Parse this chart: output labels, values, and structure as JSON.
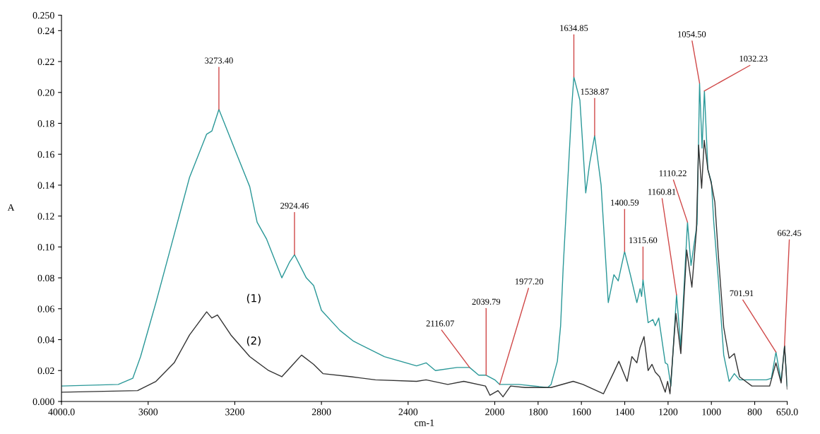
{
  "chart_data": {
    "type": "line",
    "xlabel": "cm-1",
    "ylabel": "A",
    "xlim": [
      4000,
      650
    ],
    "ylim": [
      0,
      0.25
    ],
    "xticks": [
      {
        "value": 4000,
        "label": "4000.0"
      },
      3600,
      3200,
      2800,
      2400,
      2000,
      1800,
      1600,
      1400,
      1200,
      1000,
      800,
      {
        "value": 650,
        "label": "650.0"
      }
    ],
    "yticks": [
      {
        "value": 0,
        "label": "0.000"
      },
      {
        "value": 0.02,
        "label": "0.02"
      },
      {
        "value": 0.04,
        "label": "0.04"
      },
      {
        "value": 0.06,
        "label": "0.06"
      },
      {
        "value": 0.08,
        "label": "0.08"
      },
      {
        "value": 0.1,
        "label": "0.10"
      },
      {
        "value": 0.12,
        "label": "0.12"
      },
      {
        "value": 0.14,
        "label": "0.14"
      },
      {
        "value": 0.16,
        "label": "0.16"
      },
      {
        "value": 0.18,
        "label": "0.18"
      },
      {
        "value": 0.2,
        "label": "0.20"
      },
      {
        "value": 0.22,
        "label": "0.22"
      },
      {
        "value": 0.24,
        "label": "0.24"
      },
      {
        "value": 0.25,
        "label": "0.250"
      }
    ],
    "grid": false,
    "marker": "none",
    "line_style": "solid",
    "series": [
      {
        "color": "#2a9898",
        "x": [
          4000,
          3738,
          3671,
          3635,
          3564,
          3495,
          3409,
          3330,
          3306,
          3273.4,
          3191,
          3131,
          3097,
          3053,
          2983,
          2948,
          2924.46,
          2870,
          2836,
          2800,
          2715,
          2652,
          2509,
          2361,
          2317,
          2274,
          2174,
          2116.07,
          2074,
          2039.79,
          2000,
          1977.2,
          1962,
          1889,
          1756,
          1740,
          1711,
          1696,
          1684,
          1667,
          1644,
          1634.85,
          1607,
          1580,
          1562,
          1538.87,
          1509,
          1476,
          1450,
          1430,
          1400.59,
          1374,
          1344,
          1329,
          1322,
          1315.6,
          1292,
          1270,
          1259,
          1243,
          1213,
          1202,
          1187,
          1160.81,
          1141,
          1110.22,
          1094,
          1066,
          1054.5,
          1043,
          1032.23,
          1016,
          1000,
          989,
          968,
          943,
          918,
          894,
          870,
          837,
          746,
          723,
          701.91,
          678,
          662.45,
          650
        ],
        "values": [
          0.01,
          0.011,
          0.015,
          0.029,
          0.064,
          0.1,
          0.145,
          0.173,
          0.175,
          0.189,
          0.16,
          0.139,
          0.116,
          0.105,
          0.08,
          0.09,
          0.095,
          0.08,
          0.075,
          0.059,
          0.046,
          0.039,
          0.029,
          0.023,
          0.025,
          0.02,
          0.022,
          0.022,
          0.017,
          0.017,
          0.014,
          0.011,
          0.011,
          0.011,
          0.009,
          0.011,
          0.026,
          0.049,
          0.087,
          0.132,
          0.192,
          0.21,
          0.195,
          0.135,
          0.154,
          0.172,
          0.14,
          0.064,
          0.082,
          0.078,
          0.097,
          0.082,
          0.064,
          0.073,
          0.068,
          0.079,
          0.051,
          0.053,
          0.049,
          0.054,
          0.025,
          0.024,
          0.01,
          0.069,
          0.035,
          0.116,
          0.088,
          0.115,
          0.206,
          0.164,
          0.201,
          0.15,
          0.142,
          0.116,
          0.079,
          0.03,
          0.013,
          0.018,
          0.014,
          0.014,
          0.014,
          0.015,
          0.032,
          0.013,
          0.036,
          0.01
        ]
      },
      {
        "color": "#333333",
        "x": [
          4000,
          3649,
          3564,
          3480,
          3409,
          3330,
          3306,
          3280,
          3218,
          3131,
          3044,
          2983,
          2931,
          2892,
          2836,
          2793,
          2662,
          2551,
          2361,
          2317,
          2217,
          2143,
          2043,
          2022,
          1985,
          1962,
          1927,
          1860,
          1740,
          1638,
          1593,
          1498,
          1450,
          1427,
          1389,
          1367,
          1344,
          1329,
          1311,
          1292,
          1274,
          1259,
          1239,
          1213,
          1202,
          1191,
          1164,
          1141,
          1114,
          1090,
          1069,
          1059,
          1045,
          1033,
          1016,
          1000,
          984,
          968,
          943,
          918,
          894,
          870,
          813,
          731,
          702,
          678,
          662,
          650
        ],
        "values": [
          0.006,
          0.007,
          0.013,
          0.025,
          0.043,
          0.058,
          0.054,
          0.056,
          0.043,
          0.029,
          0.02,
          0.016,
          0.024,
          0.03,
          0.024,
          0.018,
          0.016,
          0.014,
          0.013,
          0.014,
          0.011,
          0.013,
          0.01,
          0.004,
          0.007,
          0.003,
          0.01,
          0.009,
          0.009,
          0.013,
          0.011,
          0.005,
          0.019,
          0.026,
          0.013,
          0.029,
          0.025,
          0.035,
          0.042,
          0.02,
          0.024,
          0.019,
          0.016,
          0.006,
          0.013,
          0.005,
          0.057,
          0.031,
          0.098,
          0.074,
          0.111,
          0.166,
          0.138,
          0.169,
          0.15,
          0.141,
          0.129,
          0.095,
          0.048,
          0.028,
          0.031,
          0.016,
          0.01,
          0.01,
          0.025,
          0.012,
          0.036,
          0.008
        ]
      }
    ],
    "annotations": [
      {
        "text": "3273.40",
        "x": 3273.4,
        "y": 0.189
      },
      {
        "text": "2924.46",
        "x": 2924.46,
        "y": 0.095
      },
      {
        "text": "2116.07",
        "x": 2116.07,
        "y": 0.022
      },
      {
        "text": "2039.79",
        "x": 2039.79,
        "y": 0.017
      },
      {
        "text": "1977.20",
        "x": 1977.2,
        "y": 0.011
      },
      {
        "text": "1634.85",
        "x": 1634.85,
        "y": 0.21
      },
      {
        "text": "1538.87",
        "x": 1538.87,
        "y": 0.172
      },
      {
        "text": "1400.59",
        "x": 1400.59,
        "y": 0.097
      },
      {
        "text": "1315.60",
        "x": 1315.6,
        "y": 0.079
      },
      {
        "text": "1160.81",
        "x": 1160.81,
        "y": 0.069
      },
      {
        "text": "1110.22",
        "x": 1110.22,
        "y": 0.116
      },
      {
        "text": "1054.50",
        "x": 1054.5,
        "y": 0.206
      },
      {
        "text": "1032.23",
        "x": 1032.23,
        "y": 0.201
      },
      {
        "text": "701.91",
        "x": 701.91,
        "y": 0.032
      },
      {
        "text": "662.45",
        "x": 662.45,
        "y": 0.036
      },
      "(1)",
      "(2)"
    ]
  }
}
